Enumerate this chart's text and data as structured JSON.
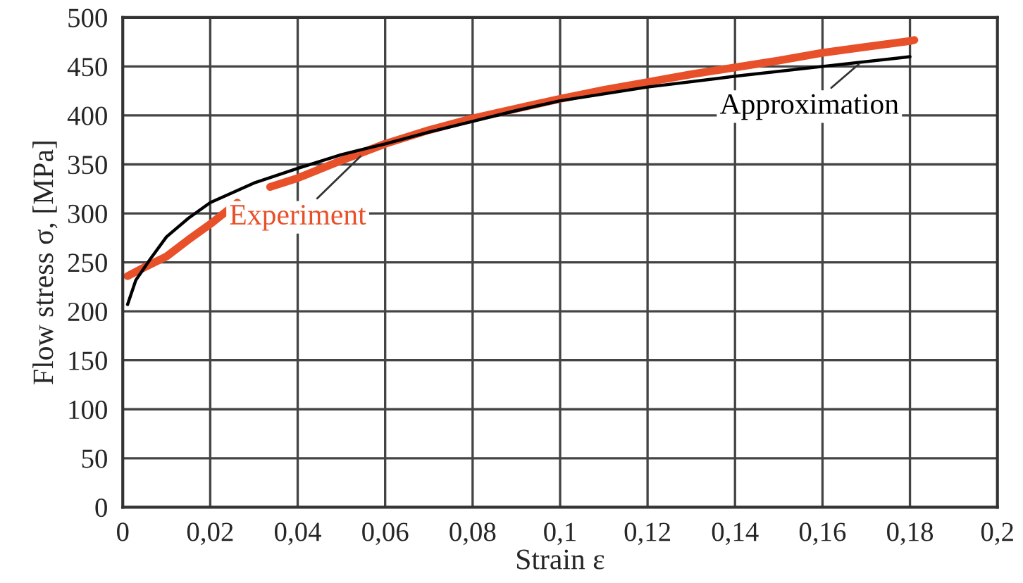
{
  "chart_data": {
    "type": "line",
    "xlabel": "Strain ε",
    "ylabel": "Flow stress σ, [MPa]",
    "series": [
      {
        "color": "#e8502a",
        "x": [
          0.0011,
          0.005,
          0.01,
          0.015,
          0.02,
          0.0262,
          0.03,
          0.0337,
          0.04,
          0.05,
          0.06,
          0.07,
          0.08,
          0.09,
          0.1,
          0.11,
          0.12,
          0.13,
          0.14,
          0.15,
          0.16,
          0.17,
          0.18,
          0.181
        ],
        "values": [
          236,
          245,
          256,
          273,
          289,
          311,
          null,
          327,
          336,
          354,
          371,
          385,
          397,
          407,
          417,
          426,
          434,
          442,
          449,
          456,
          464,
          470,
          476,
          477
        ]
      },
      {
        "color": "#000000",
        "x": [
          0.0011,
          0.003,
          0.0064,
          0.01,
          0.015,
          0.02,
          0.03,
          0.04,
          0.05,
          0.06,
          0.07,
          0.08,
          0.09,
          0.1,
          0.12,
          0.14,
          0.16,
          0.18
        ],
        "values": [
          207,
          232,
          254,
          276,
          295,
          311,
          331,
          346,
          360,
          371,
          383,
          394,
          405,
          415,
          429,
          440,
          450,
          460
        ]
      }
    ],
    "annotations": [
      {
        "text": "Experiment",
        "x": 0.055,
        "y": 361
      },
      {
        "text": "Approximation",
        "x": 0.169,
        "y": 455
      }
    ],
    "xlim": [
      0,
      0.2
    ],
    "ylim": [
      0,
      500
    ],
    "xticks": [
      0,
      {
        "value": 0.02,
        "label": "0,02"
      },
      {
        "value": 0.04,
        "label": "0,04"
      },
      {
        "value": 0.06,
        "label": "0,06"
      },
      {
        "value": 0.08,
        "label": "0,08"
      },
      {
        "value": 0.1,
        "label": "0,1"
      },
      {
        "value": 0.12,
        "label": "0,12"
      },
      {
        "value": 0.14,
        "label": "0,14"
      },
      {
        "value": 0.16,
        "label": "0,16"
      },
      {
        "value": 0.18,
        "label": "0,18"
      },
      {
        "value": 0.2,
        "label": "0,2"
      }
    ],
    "yticks": [
      0,
      50,
      100,
      150,
      200,
      250,
      300,
      350,
      400,
      450,
      500
    ],
    "grid": true,
    "legend": false
  }
}
